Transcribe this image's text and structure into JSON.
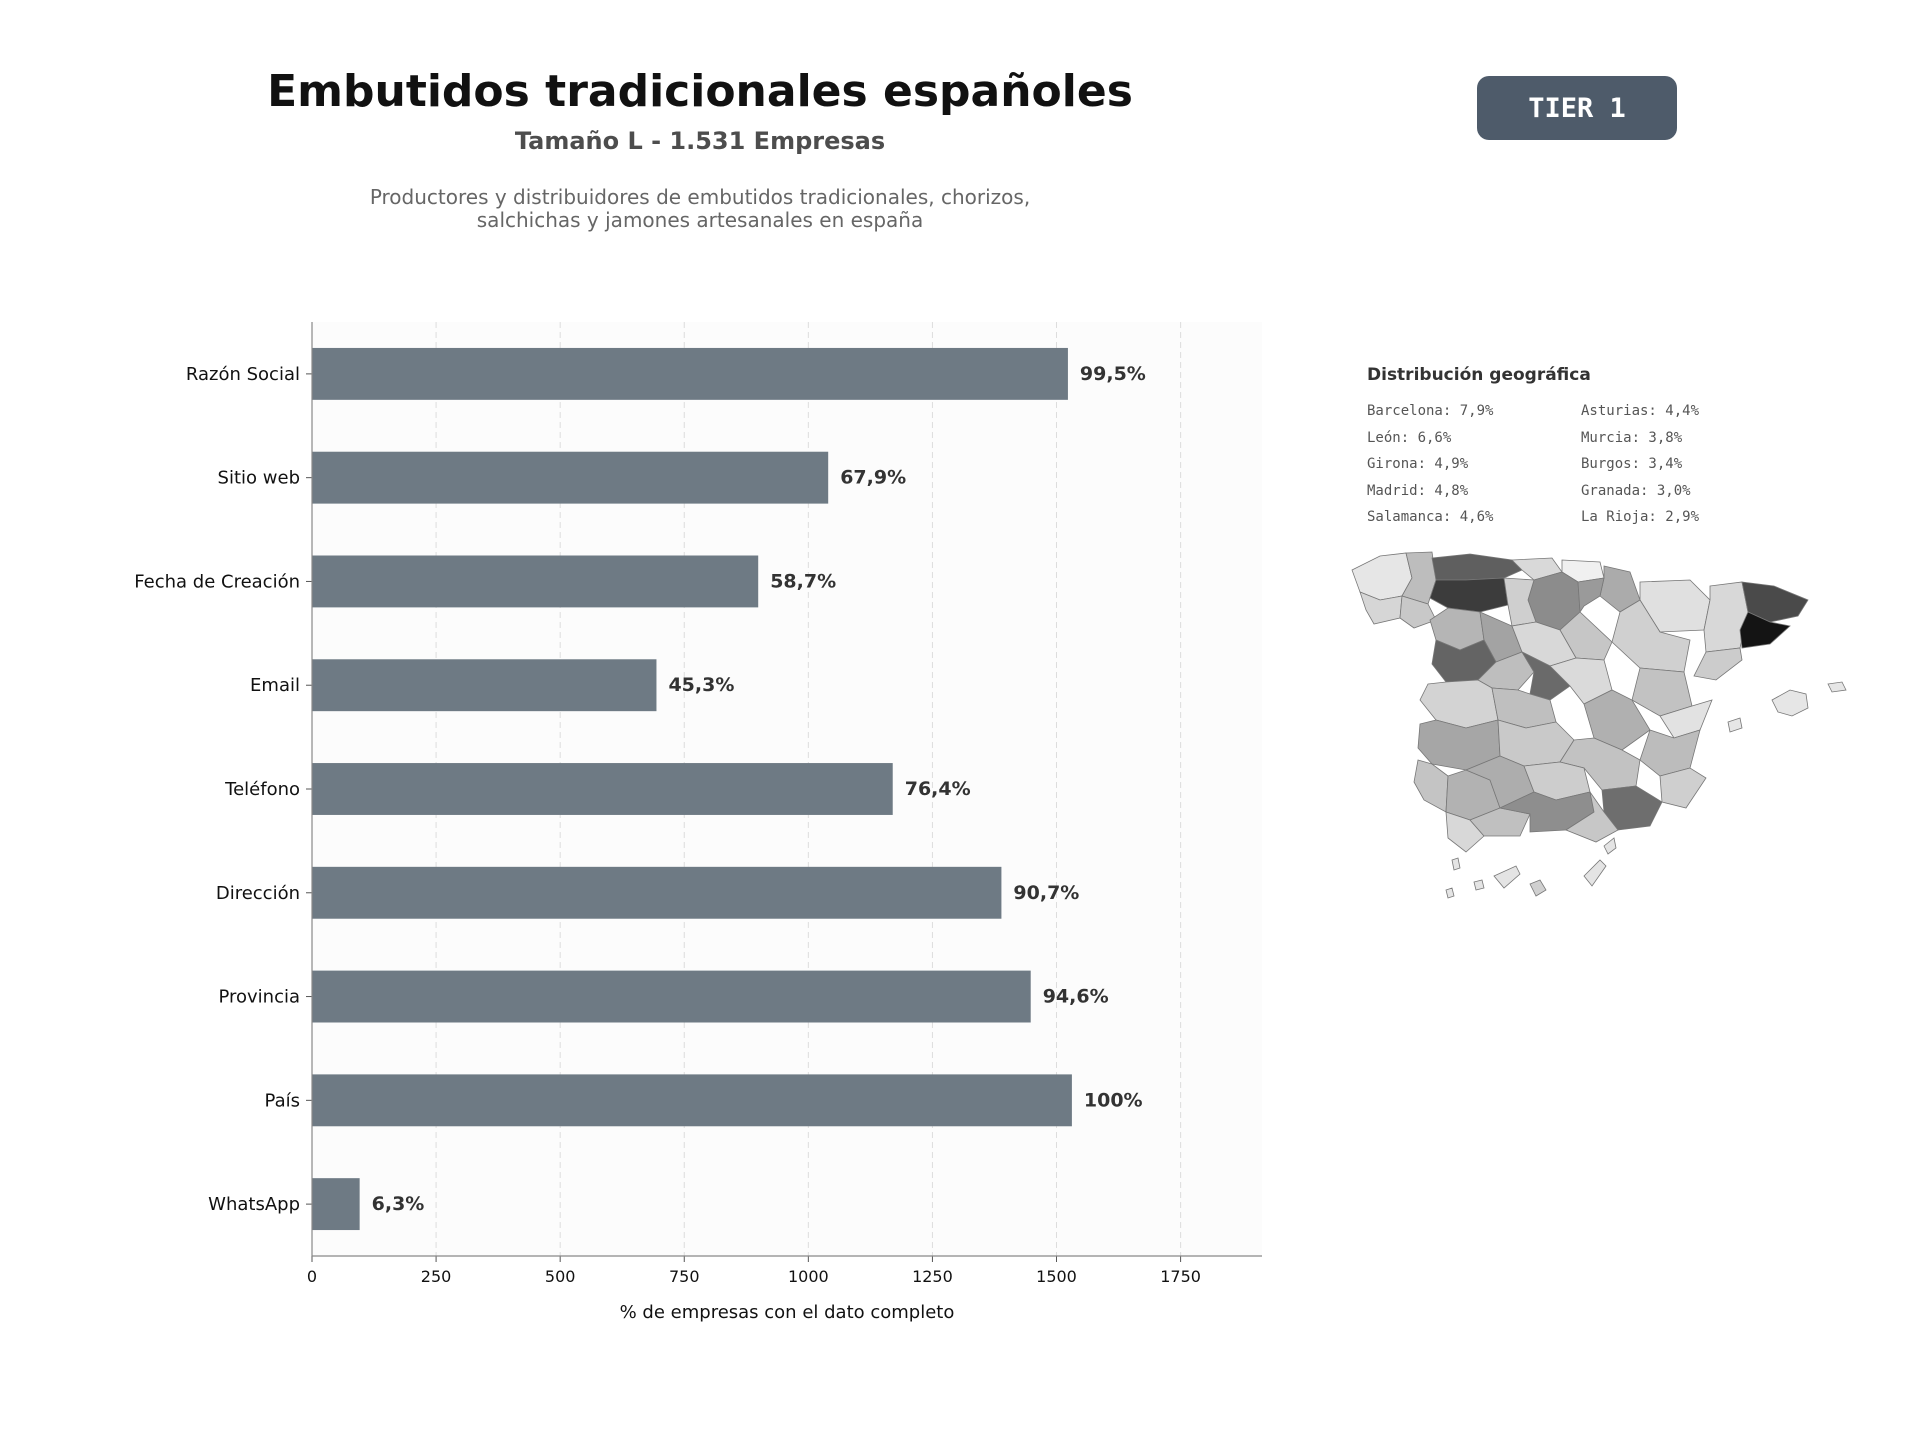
{
  "header": {
    "title": "Embutidos tradicionales españoles",
    "subtitle": "Tamaño L - 1.531 Empresas",
    "description_line1": "Productores y distribuidores de embutidos tradicionales, chorizos,",
    "description_line2": "salchichas y jamones artesanales en españa"
  },
  "badge": {
    "label": "TIER 1",
    "color": "#4e5b6a"
  },
  "colors": {
    "bar": "#6e7a84",
    "background": "#fcfcfc"
  },
  "chart_data": {
    "type": "bar",
    "orientation": "horizontal",
    "categories": [
      "Razón Social",
      "Sitio web",
      "Fecha de Creación",
      "Email",
      "Teléfono",
      "Dirección",
      "Provincia",
      "País",
      "WhatsApp"
    ],
    "values": [
      1523,
      1040,
      899,
      694,
      1170,
      1389,
      1448,
      1531,
      96
    ],
    "data_labels": [
      "99,5%",
      "67,9%",
      "58,7%",
      "45,3%",
      "76,4%",
      "90,7%",
      "94,6%",
      "100%",
      "6,3%"
    ],
    "xticks": [
      0,
      250,
      500,
      750,
      1000,
      1250,
      1500,
      1750
    ],
    "xlim": [
      0,
      1914
    ],
    "xlabel": "% de empresas con el dato completo",
    "grid": "vertical dashed"
  },
  "geo": {
    "title": "Distribución geográfica",
    "items_left": [
      "Barcelona: 7,9%",
      "León: 6,6%",
      "Girona: 4,9%",
      "Madrid: 4,8%",
      "Salamanca: 4,6%"
    ],
    "items_right": [
      "Asturias: 4,4%",
      "Murcia: 3,8%",
      "Burgos: 3,4%",
      "Granada: 3,0%",
      "La Rioja: 2,9%"
    ]
  }
}
